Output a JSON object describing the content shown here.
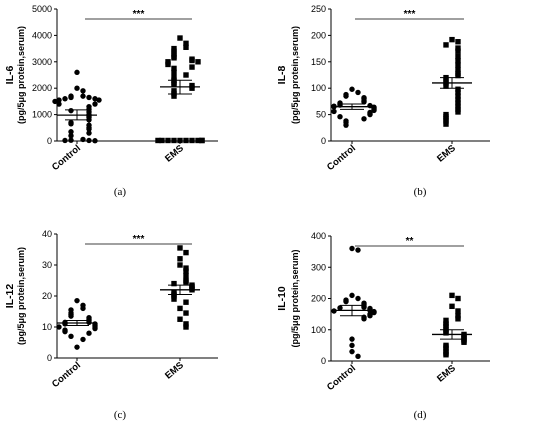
{
  "chart_data": [
    {
      "type": "scatter",
      "panel": "(a)",
      "ylabel": "IL-6",
      "ylabel_unit": "(pg/5μg protein,serum)",
      "categories": [
        "Control",
        "EMS"
      ],
      "ylim": [
        0,
        5000
      ],
      "yticks": [
        "0",
        "1000",
        "2000",
        "3000",
        "4000",
        "5000"
      ],
      "significance": "***",
      "series": [
        {
          "category": "Control",
          "marker": "circle",
          "values": [
            2600,
            2000,
            1900,
            1700,
            1700,
            1650,
            1650,
            1600,
            1600,
            1550,
            1550,
            1500,
            1400,
            1400,
            1300,
            1200,
            1150,
            1100,
            1000,
            950,
            900,
            800,
            700,
            650,
            600,
            500,
            450,
            350,
            300,
            200,
            60,
            30,
            20,
            20,
            10
          ],
          "mean": 980,
          "sem_low": 800,
          "sem_high": 1180
        },
        {
          "category": "EMS",
          "marker": "square",
          "values": [
            3900,
            3700,
            3550,
            3500,
            3400,
            3300,
            3200,
            3150,
            3100,
            3050,
            3000,
            3000,
            2900,
            2800,
            2750,
            2600,
            2500,
            2400,
            2300,
            2200,
            2150,
            2100,
            2000,
            1900,
            1800,
            1700,
            20,
            20,
            20,
            20,
            20,
            20,
            20,
            20,
            20,
            20
          ],
          "mean": 2050,
          "sem_low": 1780,
          "sem_high": 2300
        }
      ]
    },
    {
      "type": "scatter",
      "panel": "(b)",
      "ylabel": "IL-8",
      "ylabel_unit": "(pg/5μg protein,serum)",
      "categories": [
        "Control",
        "EMS"
      ],
      "ylim": [
        0,
        250
      ],
      "yticks": [
        "0",
        "50",
        "100",
        "150",
        "200",
        "250"
      ],
      "significance": "***",
      "series": [
        {
          "category": "Control",
          "marker": "circle",
          "values": [
            98,
            92,
            88,
            85,
            82,
            80,
            76,
            74,
            72,
            70,
            68,
            67,
            66,
            65,
            64,
            62,
            60,
            58,
            56,
            54,
            52,
            50,
            46,
            42,
            38,
            35,
            30
          ],
          "mean": 65,
          "sem_low": 60,
          "sem_high": 70
        },
        {
          "category": "EMS",
          "marker": "square",
          "values": [
            192,
            188,
            182,
            176,
            170,
            160,
            152,
            144,
            135,
            128,
            124,
            120,
            114,
            110,
            104,
            98,
            92,
            85,
            78,
            72,
            66,
            60,
            55,
            50,
            46,
            42,
            38,
            32
          ],
          "mean": 110,
          "sem_low": 100,
          "sem_high": 120
        }
      ]
    },
    {
      "type": "scatter",
      "panel": "(c)",
      "ylabel": "IL-12",
      "ylabel_unit": "(pg/5μg protein,serum)",
      "categories": [
        "Control",
        "EMS"
      ],
      "ylim": [
        0,
        40
      ],
      "yticks": [
        "0",
        "10",
        "20",
        "30",
        "40"
      ],
      "significance": "***",
      "series": [
        {
          "category": "Control",
          "marker": "circle",
          "values": [
            18.5,
            17,
            16,
            15.5,
            14.5,
            14,
            13.5,
            13,
            12.5,
            12,
            11.5,
            11.5,
            11,
            11,
            10.5,
            10,
            10,
            9.5,
            9,
            8.5,
            8,
            7,
            6,
            3.5
          ],
          "mean": 11.3,
          "sem_low": 10.5,
          "sem_high": 12.1
        },
        {
          "category": "EMS",
          "marker": "square",
          "values": [
            35.5,
            34,
            32,
            30,
            29,
            28,
            26.5,
            25,
            24.5,
            24,
            23.5,
            23,
            22.5,
            22,
            21,
            20.5,
            20,
            19,
            18,
            16,
            14.5,
            12.5,
            11,
            10
          ],
          "mean": 22,
          "sem_low": 20.5,
          "sem_high": 23.5
        }
      ]
    },
    {
      "type": "scatter",
      "panel": "(d)",
      "ylabel": "IL-10",
      "ylabel_unit": "(pg/5μg protein,serum)",
      "categories": [
        "Control",
        "EMS"
      ],
      "ylim": [
        0,
        400
      ],
      "yticks": [
        "0",
        "100",
        "200",
        "300",
        "400"
      ],
      "significance": "**",
      "series": [
        {
          "category": "Control",
          "marker": "circle",
          "values": [
            360,
            355,
            210,
            200,
            195,
            190,
            185,
            180,
            175,
            172,
            170,
            168,
            165,
            162,
            160,
            158,
            155,
            150,
            145,
            140,
            135,
            70,
            50,
            30,
            15
          ],
          "mean": 162,
          "sem_low": 145,
          "sem_high": 178
        },
        {
          "category": "EMS",
          "marker": "square",
          "values": [
            210,
            200,
            175,
            160,
            145,
            135,
            130,
            120,
            115,
            110,
            100,
            95,
            90,
            85,
            80,
            75,
            70,
            65,
            60,
            50,
            45,
            40,
            30,
            25,
            20
          ],
          "mean": 85,
          "sem_low": 70,
          "sem_high": 100
        }
      ]
    }
  ]
}
